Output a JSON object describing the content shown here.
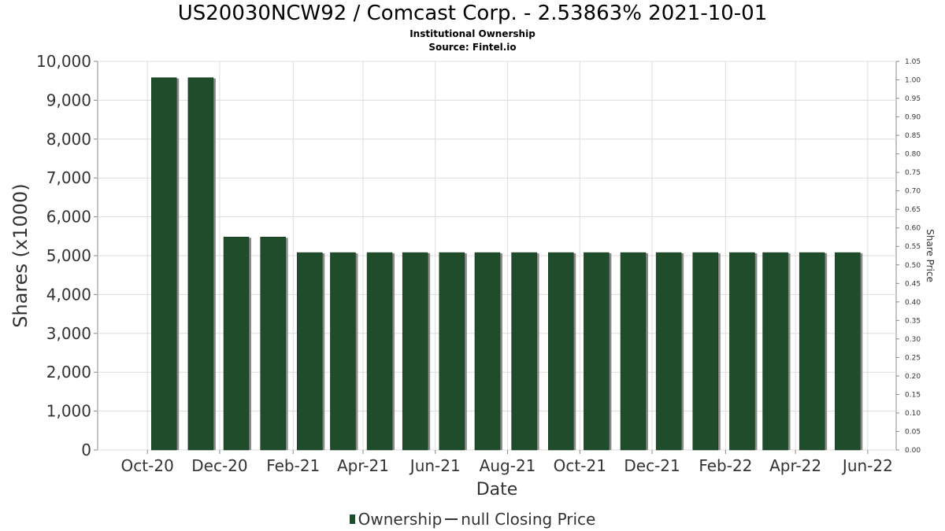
{
  "header": {
    "title": "US20030NCW92 / Comcast Corp. - 2.53863% 2021-10-01",
    "subtitle1": "Institutional Ownership",
    "subtitle2": "Source: Fintel.io"
  },
  "legend": {
    "ownership": "Ownership",
    "price": "null Closing Price"
  },
  "colors": {
    "bar": "#1f4d2b",
    "bar_shadow": "#8a8a8a",
    "grid": "#dddddd",
    "axis": "#888888"
  },
  "chart_data": {
    "type": "bar",
    "xlabel": "Date",
    "ylabel": "Shares (x1000)",
    "y2label": "Share Price",
    "ylim": [
      0,
      10000
    ],
    "y2lim": [
      0,
      1.05
    ],
    "grid": true,
    "legend_position": "bottom",
    "yticks": [
      "0",
      "1,000",
      "2,000",
      "3,000",
      "4,000",
      "5,000",
      "6,000",
      "7,000",
      "8,000",
      "9,000",
      "10,000"
    ],
    "y2ticks": [
      "0.00",
      "0.05",
      "0.10",
      "0.15",
      "0.20",
      "0.25",
      "0.30",
      "0.35",
      "0.40",
      "0.45",
      "0.50",
      "0.55",
      "0.60",
      "0.65",
      "0.70",
      "0.75",
      "0.80",
      "0.85",
      "0.90",
      "0.95",
      "1.00",
      "1.05"
    ],
    "xticks": [
      "Oct-20",
      "Dec-20",
      "Feb-21",
      "Apr-21",
      "Jun-21",
      "Aug-21",
      "Oct-21",
      "Dec-21",
      "Feb-22",
      "Apr-22",
      "Jun-22"
    ],
    "series": [
      {
        "name": "Ownership",
        "dates": [
          "2020-10-01",
          "2020-11-01",
          "2020-12-01",
          "2021-01-01",
          "2021-02-01",
          "2021-03-01",
          "2021-04-01",
          "2021-05-01",
          "2021-06-01",
          "2021-07-01",
          "2021-08-01",
          "2021-09-01",
          "2021-10-01",
          "2021-11-01",
          "2021-12-01",
          "2022-01-01",
          "2022-02-01",
          "2022-03-01",
          "2022-04-01",
          "2022-05-01"
        ],
        "values": [
          9580,
          9580,
          5480,
          5480,
          5080,
          5080,
          5080,
          5080,
          5080,
          5080,
          5080,
          5080,
          5080,
          5080,
          5080,
          5080,
          5080,
          5080,
          5080,
          5080
        ]
      }
    ]
  }
}
